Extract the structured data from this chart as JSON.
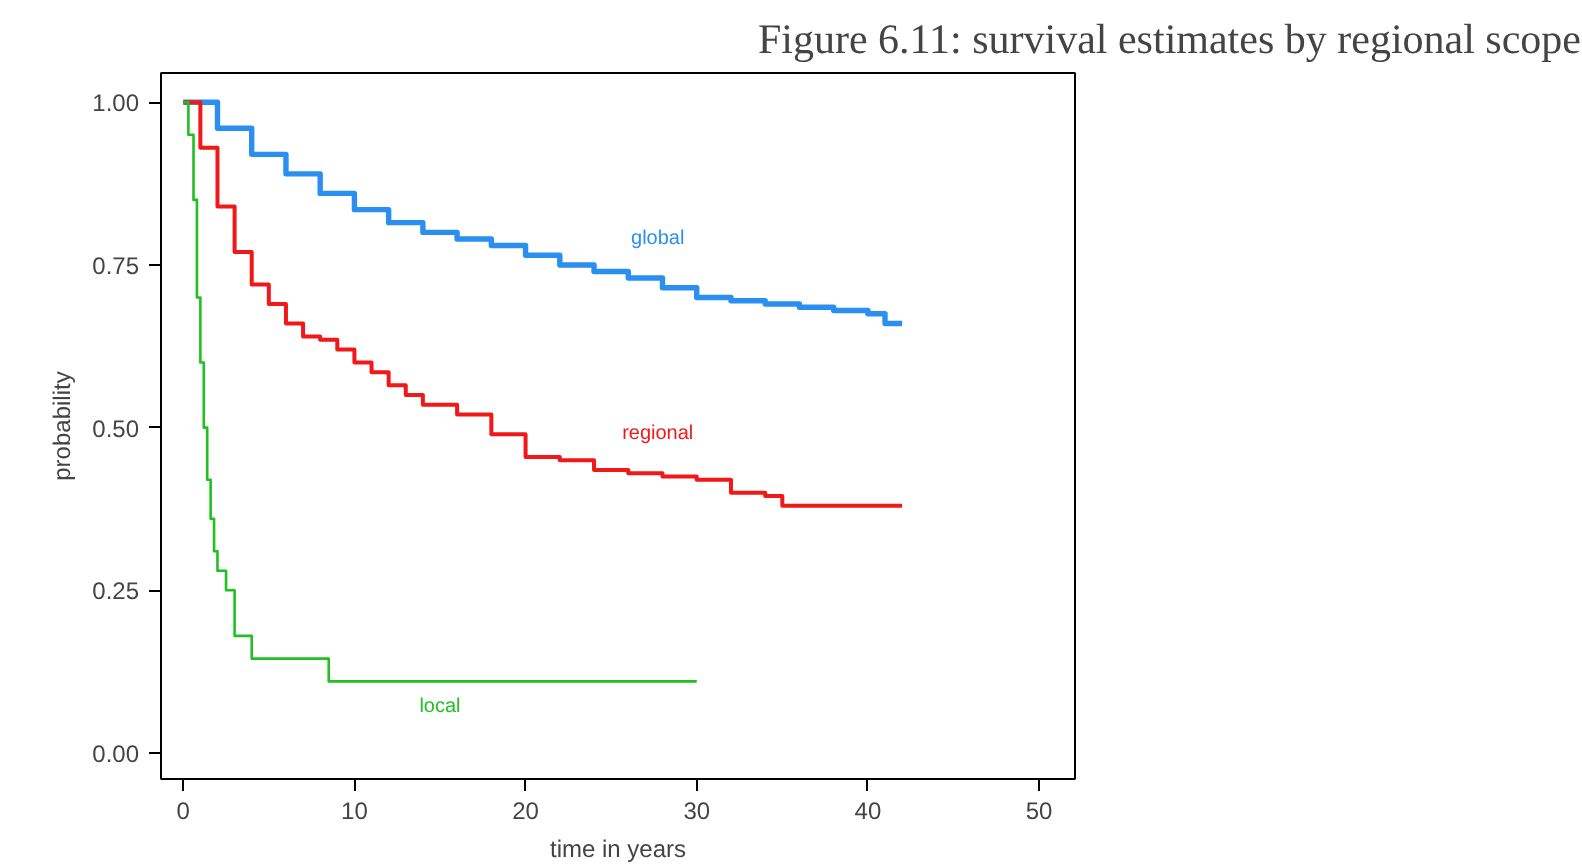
{
  "chart_data": {
    "type": "step",
    "title": "Figure 6.11: survival estimates by regional scope",
    "xlabel": "time in years",
    "ylabel": "probability",
    "xlim": [
      -1.3,
      52.1
    ],
    "ylim": [
      -0.04,
      1.045
    ],
    "xticks": [
      0,
      10,
      20,
      30,
      40,
      50
    ],
    "yticks": [
      {
        "value": 0,
        "label": "0.00"
      },
      {
        "value": 0.25,
        "label": "0.25"
      },
      {
        "value": 0.5,
        "label": "0.50"
      },
      {
        "value": 0.75,
        "label": "0.75"
      },
      {
        "value": 1,
        "label": "1.00"
      }
    ],
    "grid": false,
    "legend": false,
    "series": [
      {
        "name": "global",
        "color": "#2b8ff0",
        "x": [
          0,
          2,
          4,
          6,
          8,
          10,
          12,
          14,
          16,
          18,
          20,
          22,
          24,
          26,
          28,
          30,
          32,
          34,
          36,
          38,
          40,
          41,
          42
        ],
        "values": [
          1.0,
          0.96,
          0.92,
          0.89,
          0.86,
          0.835,
          0.815,
          0.8,
          0.79,
          0.78,
          0.765,
          0.75,
          0.74,
          0.73,
          0.715,
          0.7,
          0.695,
          0.69,
          0.685,
          0.68,
          0.675,
          0.66,
          0.66
        ]
      },
      {
        "name": "regional",
        "color": "#f01818",
        "x": [
          0,
          1,
          2,
          3,
          4,
          5,
          6,
          7,
          8,
          9,
          10,
          11,
          12,
          13,
          14,
          16,
          18,
          20,
          22,
          24,
          26,
          28,
          30,
          32,
          34,
          35,
          42
        ],
        "values": [
          1.0,
          0.93,
          0.84,
          0.77,
          0.72,
          0.69,
          0.66,
          0.64,
          0.635,
          0.62,
          0.6,
          0.585,
          0.565,
          0.55,
          0.535,
          0.52,
          0.49,
          0.455,
          0.45,
          0.435,
          0.43,
          0.425,
          0.42,
          0.4,
          0.395,
          0.38,
          0.38
        ]
      },
      {
        "name": "local",
        "color": "#20c020",
        "x": [
          0,
          0.3,
          0.6,
          0.8,
          1,
          1.2,
          1.4,
          1.6,
          1.8,
          2,
          2.5,
          3,
          4,
          8.5,
          30
        ],
        "values": [
          1.0,
          0.95,
          0.85,
          0.7,
          0.6,
          0.5,
          0.42,
          0.36,
          0.31,
          0.28,
          0.25,
          0.18,
          0.145,
          0.11,
          0.11
        ]
      }
    ]
  }
}
